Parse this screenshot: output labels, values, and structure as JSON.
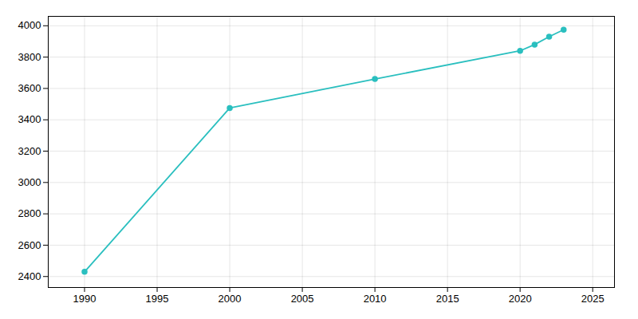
{
  "chart_data": {
    "type": "line",
    "x": [
      1990,
      2000,
      2010,
      2020,
      2021,
      2022,
      2023
    ],
    "values": [
      2430,
      3475,
      3660,
      3840,
      3880,
      3930,
      3975
    ],
    "color": "#2abfbf",
    "marker": "circle",
    "xlim": [
      1987.5,
      2026.5
    ],
    "ylim": [
      2330,
      4060
    ],
    "xticks": [
      1990,
      1995,
      2000,
      2005,
      2010,
      2015,
      2020,
      2025
    ],
    "yticks": [
      2400,
      2600,
      2800,
      3000,
      3200,
      3400,
      3600,
      3800,
      4000
    ],
    "grid": true
  }
}
